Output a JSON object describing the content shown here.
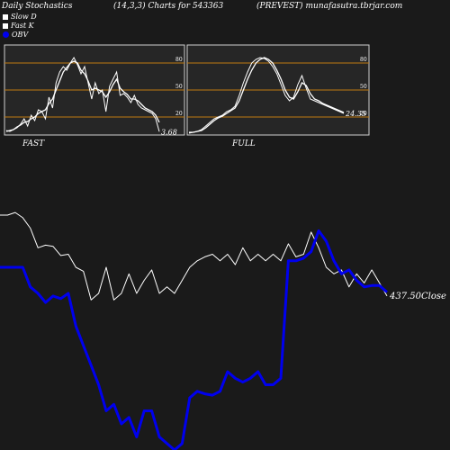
{
  "header": {
    "left": "Daily Stochastics",
    "params": "(14,3,3) Charts for 543363",
    "right": "(PREVEST) munafasutra.tbrjar.com"
  },
  "legend": [
    {
      "label": "Slow  D",
      "color": "#ffffff"
    },
    {
      "label": "Fast K",
      "color": "#ffffff"
    },
    {
      "label": "OBV",
      "color": "#0000ee"
    }
  ],
  "chart_data": [
    {
      "type": "line",
      "title": "FAST",
      "ylim": [
        0,
        100
      ],
      "levels": [
        20,
        50,
        80
      ],
      "level_labels": [
        "20",
        "50",
        "80"
      ],
      "last_label": "3.68",
      "series": [
        {
          "values": [
            5,
            4,
            6,
            8,
            12,
            18,
            10,
            22,
            16,
            28,
            26,
            18,
            42,
            30,
            58,
            70,
            76,
            72,
            80,
            86,
            78,
            68,
            76,
            58,
            40,
            58,
            46,
            50,
            26,
            54,
            62,
            70,
            44,
            46,
            42,
            36,
            44,
            34,
            30,
            28,
            26,
            24,
            18,
            3.68
          ]
        },
        {
          "values": [
            4,
            5,
            6,
            9,
            11,
            14,
            15,
            18,
            20,
            24,
            26,
            28,
            35,
            40,
            50,
            60,
            70,
            75,
            80,
            82,
            80,
            72,
            68,
            60,
            50,
            52,
            50,
            48,
            42,
            48,
            56,
            62,
            52,
            48,
            45,
            40,
            40,
            38,
            34,
            30,
            28,
            26,
            22,
            14
          ]
        }
      ]
    },
    {
      "type": "line",
      "title": "FULL",
      "ylim": [
        0,
        100
      ],
      "levels": [
        20,
        50,
        80
      ],
      "level_labels": [
        "20",
        "50",
        "80"
      ],
      "last_label": "24.35",
      "series": [
        {
          "values": [
            2,
            3,
            4,
            6,
            10,
            14,
            18,
            20,
            22,
            26,
            28,
            32,
            44,
            58,
            70,
            80,
            84,
            86,
            85,
            82,
            76,
            68,
            56,
            44,
            38,
            42,
            56,
            66,
            52,
            40,
            38,
            36,
            34,
            32,
            30,
            28,
            26,
            24
          ]
        },
        {
          "values": [
            3,
            3,
            4,
            5,
            8,
            12,
            16,
            19,
            21,
            24,
            27,
            30,
            38,
            50,
            62,
            72,
            80,
            84,
            86,
            84,
            80,
            72,
            62,
            50,
            42,
            40,
            48,
            58,
            55,
            46,
            40,
            38,
            35,
            33,
            31,
            29,
            27,
            25
          ]
        }
      ]
    },
    {
      "type": "line",
      "title": "",
      "last_label": "437.50",
      "last_label_suffix": "Close",
      "series": [
        {
          "name": "Close",
          "color": "#ffffff",
          "values": [
            80,
            80,
            82,
            78,
            70,
            55,
            57,
            56,
            49,
            50,
            40,
            37,
            15,
            20,
            40,
            15,
            20,
            35,
            20,
            30,
            38,
            20,
            25,
            20,
            30,
            40,
            45,
            48,
            50,
            45,
            50,
            42,
            55,
            45,
            50,
            45,
            50,
            45,
            58,
            48,
            50,
            67,
            55,
            40,
            35,
            38,
            25,
            35,
            28,
            38,
            28,
            18
          ]
        },
        {
          "name": "OBV",
          "color": "#0000ee",
          "values": [
            40,
            40,
            40,
            40,
            25,
            20,
            13,
            18,
            16,
            20,
            -5,
            -20,
            -35,
            -50,
            -70,
            -65,
            -80,
            -75,
            -90,
            -70,
            -70,
            -90,
            -95,
            -100,
            -95,
            -60,
            -55,
            -57,
            -58,
            -55,
            -40,
            -45,
            -48,
            -45,
            -40,
            -50,
            -50,
            -45,
            45,
            45,
            47,
            52,
            68,
            60,
            45,
            35,
            38,
            30,
            25,
            26,
            26,
            21
          ]
        }
      ]
    }
  ]
}
